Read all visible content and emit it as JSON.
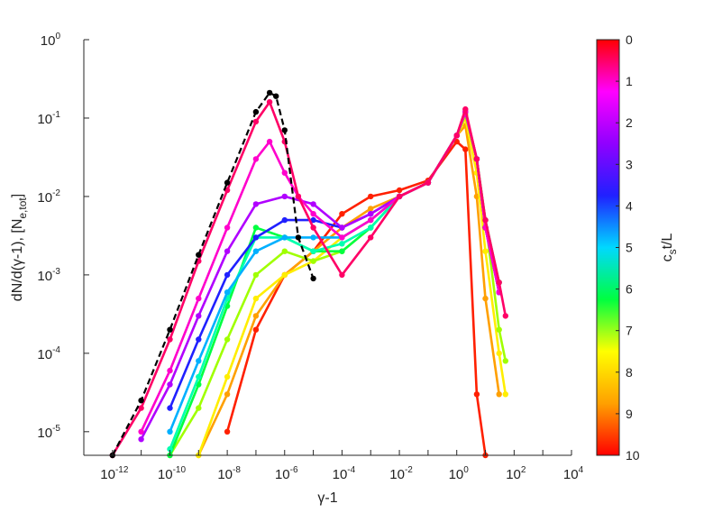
{
  "chart_data": {
    "type": "line",
    "xlabel": "γ-1",
    "ylabel": "dN/d(γ-1), [Ne,tot]",
    "xscale": "log",
    "yscale": "log",
    "xlim": [
      1e-13,
      10000.0
    ],
    "ylim": [
      5e-06,
      1
    ],
    "grid": false,
    "x_ticks": [
      {
        "base": "10",
        "exp": "-12"
      },
      {
        "base": "10",
        "exp": "-10"
      },
      {
        "base": "10",
        "exp": "-8"
      },
      {
        "base": "10",
        "exp": "-6"
      },
      {
        "base": "10",
        "exp": "-4"
      },
      {
        "base": "10",
        "exp": "-2"
      },
      {
        "base": "10",
        "exp": "0"
      },
      {
        "base": "10",
        "exp": "2"
      },
      {
        "base": "10",
        "exp": "4"
      }
    ],
    "y_ticks": [
      {
        "base": "10",
        "exp": "-5"
      },
      {
        "base": "10",
        "exp": "-4"
      },
      {
        "base": "10",
        "exp": "-3"
      },
      {
        "base": "10",
        "exp": "-2"
      },
      {
        "base": "10",
        "exp": "-1"
      },
      {
        "base": "10",
        "exp": "0"
      }
    ],
    "colorbar": {
      "label": "cst/L",
      "label_main": "c",
      "label_sub": "s",
      "label_rest": "t/L",
      "min": 0,
      "max": 10,
      "ticks": [
        "0",
        "1",
        "2",
        "3",
        "4",
        "5",
        "6",
        "7",
        "8",
        "9",
        "10"
      ],
      "colormap": [
        "#ff0000",
        "#ff00ff",
        "#9000ff",
        "#2020ff",
        "#00d8ff",
        "#00ff40",
        "#ffff00",
        "#ffa000",
        "#ff0000"
      ]
    },
    "reference_series": {
      "name": "initial (dashed)",
      "color": "#000000",
      "dashed": true,
      "x": [
        1e-12,
        1e-11,
        1e-10,
        1e-09,
        1e-08,
        1e-07,
        3e-07,
        5e-07,
        1e-06,
        3e-06,
        1e-05
      ],
      "y": [
        5e-06,
        2.5e-05,
        0.0002,
        0.0018,
        0.015,
        0.12,
        0.21,
        0.19,
        0.07,
        0.003,
        0.0009
      ]
    },
    "series": [
      {
        "name": "cst/L=0",
        "t": 0.0,
        "color": "#ff0066",
        "x": [
          1e-12,
          1e-11,
          1e-10,
          1e-09,
          1e-08,
          1e-07,
          3e-07,
          1e-06,
          3e-06,
          1e-05,
          0.0001,
          0.001,
          0.01,
          0.1,
          1,
          2,
          5,
          10,
          30,
          50
        ],
        "y": [
          5e-06,
          2e-05,
          0.00015,
          0.0015,
          0.012,
          0.09,
          0.16,
          0.05,
          0.01,
          0.004,
          0.001,
          0.003,
          0.01,
          0.015,
          0.06,
          0.13,
          0.03,
          0.005,
          0.0008,
          0.0003
        ]
      },
      {
        "name": "cst/L=1",
        "t": 1.0,
        "color": "#ff00cc",
        "x": [
          1e-11,
          1e-10,
          1e-09,
          1e-08,
          1e-07,
          3e-07,
          1e-06,
          3e-06,
          1e-05,
          0.0001,
          0.001,
          0.01,
          0.1,
          1,
          2,
          5,
          10,
          30
        ],
        "y": [
          1e-05,
          6e-05,
          0.0005,
          0.004,
          0.03,
          0.05,
          0.02,
          0.01,
          0.006,
          0.003,
          0.005,
          0.01,
          0.015,
          0.06,
          0.12,
          0.03,
          0.004,
          0.0006
        ]
      },
      {
        "name": "cst/L=2",
        "t": 2.0,
        "color": "#b000ff",
        "x": [
          1e-11,
          1e-10,
          1e-09,
          1e-08,
          1e-07,
          1e-06,
          1e-05,
          0.0001,
          0.001,
          0.01,
          0.1,
          1,
          2,
          5,
          10,
          30
        ],
        "y": [
          8e-06,
          4e-05,
          0.0003,
          0.002,
          0.008,
          0.01,
          0.008,
          0.004,
          0.006,
          0.01,
          0.015,
          0.06,
          0.12,
          0.03,
          0.004,
          0.0006
        ]
      },
      {
        "name": "cst/L=3",
        "t": 3.0,
        "color": "#2020ff",
        "x": [
          1e-10,
          1e-09,
          1e-08,
          1e-07,
          1e-06,
          1e-05,
          0.0001,
          0.001,
          0.01,
          0.1,
          1,
          2,
          5,
          10,
          30
        ],
        "y": [
          2e-05,
          0.00015,
          0.001,
          0.003,
          0.005,
          0.005,
          0.004,
          0.006,
          0.01,
          0.015,
          0.06,
          0.12,
          0.03,
          0.004,
          0.0006
        ]
      },
      {
        "name": "cst/L=4",
        "t": 4.0,
        "color": "#00b0ff",
        "x": [
          1e-10,
          1e-09,
          1e-08,
          1e-07,
          1e-06,
          1e-05,
          0.0001,
          0.001,
          0.01,
          0.1,
          1,
          2,
          5,
          10,
          30
        ],
        "y": [
          1e-05,
          8e-05,
          0.0006,
          0.002,
          0.003,
          0.003,
          0.003,
          0.005,
          0.01,
          0.015,
          0.06,
          0.12,
          0.03,
          0.004,
          0.0006
        ]
      },
      {
        "name": "cst/L=5",
        "t": 5.0,
        "color": "#00ffb0",
        "x": [
          1e-10,
          1e-09,
          1e-08,
          1e-07,
          1e-06,
          1e-05,
          0.0001,
          0.001,
          0.01,
          0.1,
          1,
          2,
          5,
          10,
          30
        ],
        "y": [
          6e-06,
          5e-05,
          0.0005,
          0.003,
          0.003,
          0.002,
          0.0025,
          0.004,
          0.01,
          0.015,
          0.06,
          0.12,
          0.03,
          0.004,
          0.0006
        ]
      },
      {
        "name": "cst/L=6",
        "t": 6.0,
        "color": "#00ff40",
        "x": [
          1e-10,
          1e-09,
          1e-08,
          1e-07,
          1e-06,
          1e-05,
          0.0001,
          0.001,
          0.01,
          0.1,
          1,
          2,
          5,
          10,
          30
        ],
        "y": [
          5e-06,
          4e-05,
          0.0004,
          0.004,
          0.003,
          0.002,
          0.002,
          0.004,
          0.01,
          0.015,
          0.06,
          0.12,
          0.03,
          0.005,
          0.0008
        ]
      },
      {
        "name": "cst/L=7",
        "t": 7.0,
        "color": "#a0ff00",
        "x": [
          1e-10,
          1e-09,
          1e-08,
          1e-07,
          1e-06,
          1e-05,
          0.0001,
          0.001,
          0.01,
          0.1,
          1,
          2,
          5,
          10,
          30,
          50
        ],
        "y": [
          5e-06,
          2e-05,
          0.00015,
          0.001,
          0.002,
          0.0015,
          0.002,
          0.004,
          0.01,
          0.015,
          0.06,
          0.11,
          0.03,
          0.005,
          0.0002,
          8e-05
        ]
      },
      {
        "name": "cst/L=8",
        "t": 8.0,
        "color": "#ffee00",
        "x": [
          1e-09,
          1e-08,
          1e-07,
          1e-06,
          1e-05,
          0.0001,
          0.001,
          0.01,
          0.1,
          1,
          2,
          5,
          10,
          30,
          50
        ],
        "y": [
          5e-06,
          5e-05,
          0.0005,
          0.001,
          0.0015,
          0.003,
          0.005,
          0.01,
          0.015,
          0.06,
          0.1,
          0.02,
          0.002,
          0.0001,
          3e-05
        ]
      },
      {
        "name": "cst/L=9",
        "t": 9.0,
        "color": "#ffa000",
        "x": [
          1e-09,
          1e-08,
          1e-07,
          1e-06,
          1e-05,
          0.0001,
          0.001,
          0.01,
          0.1,
          1,
          2,
          5,
          10,
          30
        ],
        "y": [
          5e-06,
          3e-05,
          0.0003,
          0.001,
          0.002,
          0.004,
          0.007,
          0.01,
          0.015,
          0.06,
          0.08,
          0.01,
          0.0005,
          3e-05
        ]
      },
      {
        "name": "cst/L=10",
        "t": 10.0,
        "color": "#ff2000",
        "x": [
          1e-08,
          1e-07,
          1e-06,
          1e-05,
          0.0001,
          0.001,
          0.01,
          0.1,
          1,
          2,
          5,
          10
        ],
        "y": [
          1e-05,
          0.0002,
          0.001,
          0.002,
          0.006,
          0.01,
          0.012,
          0.016,
          0.05,
          0.04,
          3e-05,
          5e-06
        ]
      }
    ]
  }
}
